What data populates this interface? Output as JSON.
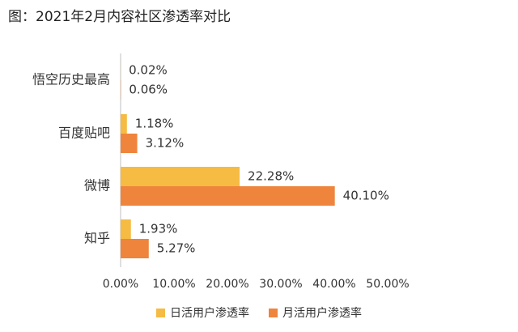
{
  "title": "图：2021年2月内容社区渗透率对比",
  "colors": {
    "daily": "#F6BB43",
    "monthly": "#EF843C",
    "axis": "#BFBFBF"
  },
  "chart_data": {
    "type": "bar",
    "orientation": "horizontal",
    "categories": [
      "悟空历史最高",
      "百度贴吧",
      "微博",
      "知乎"
    ],
    "series": [
      {
        "name": "日活用户渗透率",
        "values": [
          0.02,
          1.18,
          22.28,
          1.93
        ],
        "labels": [
          "0.02%",
          "1.18%",
          "22.28%",
          "1.93%"
        ]
      },
      {
        "name": "月活用户渗透率",
        "values": [
          0.06,
          3.12,
          40.1,
          5.27
        ],
        "labels": [
          "0.06%",
          "3.12%",
          "40.10%",
          "5.27%"
        ]
      }
    ],
    "xlim": [
      0,
      50
    ],
    "ticks": [
      0,
      10,
      20,
      30,
      40,
      50
    ],
    "tick_labels": [
      "0.00%",
      "10.00%",
      "20.00%",
      "30.00%",
      "40.00%",
      "50.00%"
    ],
    "grid": false,
    "legend_position": "bottom"
  }
}
